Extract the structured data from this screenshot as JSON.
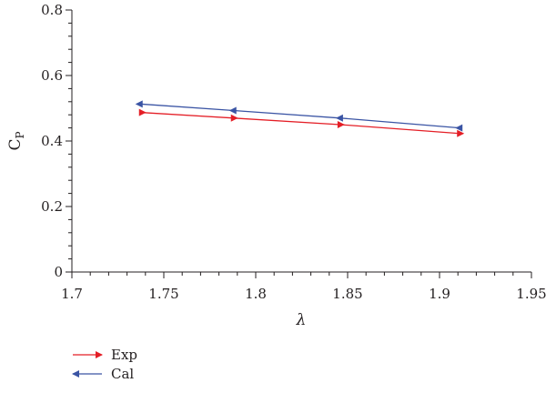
{
  "chart_data": {
    "type": "line",
    "xlabel": "λ",
    "ylabel": {
      "base": "C",
      "sub": "P"
    },
    "xlim": [
      1.7,
      1.95
    ],
    "ylim": [
      0,
      0.8
    ],
    "xticks": [
      1.7,
      1.75,
      1.8,
      1.85,
      1.9,
      1.95
    ],
    "yticks": [
      0,
      0.2,
      0.4,
      0.6,
      0.8
    ],
    "xtick_labels": [
      "1.7",
      "1.75",
      "1.8",
      "1.85",
      "1.9",
      "1.95"
    ],
    "ytick_labels": [
      "0",
      "0.2",
      "0.4",
      "0.6",
      "0.8"
    ],
    "grid": false,
    "legend_placement": "bottom-left, below plot",
    "series": [
      {
        "name": "Exp",
        "color": "#e41e26",
        "marker": "triangle-right",
        "x": [
          1.738,
          1.788,
          1.846,
          1.911
        ],
        "y": [
          0.487,
          0.47,
          0.45,
          0.423
        ]
      },
      {
        "name": "Cal",
        "color": "#3a54a4",
        "marker": "triangle-left",
        "x": [
          1.737,
          1.788,
          1.846,
          1.911
        ],
        "y": [
          0.513,
          0.493,
          0.47,
          0.44
        ]
      }
    ]
  }
}
